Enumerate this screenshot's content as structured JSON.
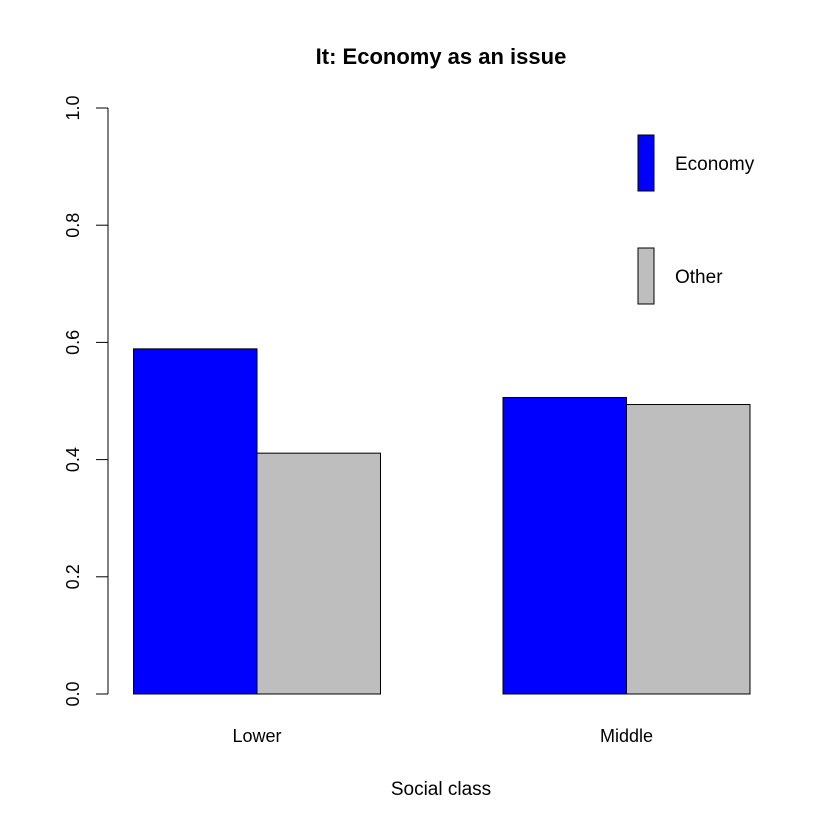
{
  "chart_data": {
    "type": "bar",
    "title": "It: Economy as an issue",
    "xlabel": "Social class",
    "ylabel": "",
    "categories": [
      "Lower",
      "Middle"
    ],
    "series": [
      {
        "name": "Economy",
        "color": "#0000ff",
        "values": [
          0.589,
          0.506
        ]
      },
      {
        "name": "Other",
        "color": "#bebebe",
        "values": [
          0.411,
          0.494
        ]
      }
    ],
    "ylim": [
      0,
      1
    ],
    "y_ticks": [
      0,
      0.2,
      0.4,
      0.6,
      0.8,
      1
    ],
    "y_tick_labels": [
      "0.0",
      "0.2",
      "0.4",
      "0.6",
      "0.8",
      "1.0"
    ],
    "grid": false,
    "legend_position": "top-right",
    "barmode": "grouped"
  }
}
